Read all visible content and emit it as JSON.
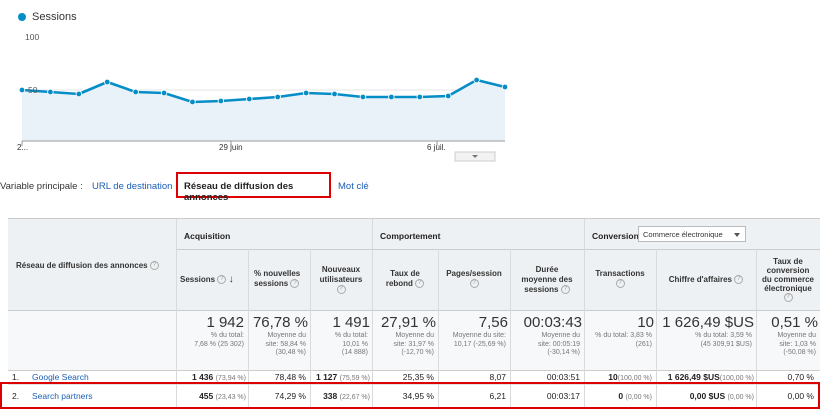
{
  "chart": {
    "legend": "Sessions",
    "color": "#058dc7",
    "fill": "#e8f2f8",
    "y_top_label": "100",
    "y_mid_label": "50",
    "x_labels": [
      "2...",
      "29 juin",
      "6 juil."
    ]
  },
  "chart_data": {
    "type": "area",
    "series": [
      {
        "name": "Sessions",
        "values": [
          50,
          48,
          46,
          58,
          48,
          47,
          38,
          39,
          41,
          43,
          47,
          46,
          43,
          43,
          43,
          44,
          60,
          53
        ]
      }
    ],
    "ylim": [
      0,
      100
    ],
    "y_ticks": [
      "50",
      "100"
    ],
    "x_tick_labels": [
      "2...",
      "29 juin",
      "6 juil."
    ],
    "grid": true
  },
  "dimension": {
    "label": "Variable principale :",
    "options": [
      {
        "label": "URL de destination"
      },
      {
        "label": "Réseau de diffusion des annonces"
      },
      {
        "label": "Mot clé"
      }
    ]
  },
  "table": {
    "first_col_header": "Réseau de diffusion des annonces",
    "groups": {
      "acquisition": "Acquisition",
      "comportement": "Comportement",
      "conversions": "Conversions"
    },
    "conversion_select": "Commerce électronique",
    "columns": [
      {
        "l1": "Sessions",
        "l2": ""
      },
      {
        "l1": "% nouvelles",
        "l2": "sessions"
      },
      {
        "l1": "Nouveaux",
        "l2": "utilisateurs"
      },
      {
        "l1": "Taux de",
        "l2": "rebond"
      },
      {
        "l1": "Pages/session",
        "l2": ""
      },
      {
        "l1": "Durée",
        "l2": "moyenne des",
        "l3": "sessions"
      },
      {
        "l1": "Transactions",
        "l2": ""
      },
      {
        "l1": "Chiffre d'affaires",
        "l2": ""
      },
      {
        "l1": "Taux de",
        "l2": "conversion",
        "l3": "du commerce",
        "l4": "électronique"
      }
    ],
    "summary": [
      {
        "v": "1 942",
        "s1": "% du total:",
        "s2": "7,68 % (25 302)"
      },
      {
        "v": "76,78 %",
        "s1": "Moyenne du",
        "s2": "site: 58,84 %",
        "s3": "(30,48 %)"
      },
      {
        "v": "1 491",
        "s1": "% du total:",
        "s2": "10,01 %",
        "s3": "(14 888)"
      },
      {
        "v": "27,91 %",
        "s1": "Moyenne du",
        "s2": "site: 31,97 %",
        "s3": "(-12,70 %)"
      },
      {
        "v": "7,56",
        "s1": "Moyenne du site:",
        "s2": "10,17 (-25,69 %)"
      },
      {
        "v": "00:03:43",
        "s1": "Moyenne du",
        "s2": "site: 00:05:19",
        "s3": "(-30,14 %)"
      },
      {
        "v": "10",
        "s1": "% du total: 3,83 %",
        "s2": "(261)"
      },
      {
        "v": "1 626,49 $US",
        "s1": "% du total: 3,59 %",
        "s2": "(45 309,91 $US)"
      },
      {
        "v": "0,51 %",
        "s1": "Moyenne du",
        "s2": "site: 1,03 %",
        "s3": "(-50,08 %)"
      }
    ],
    "rows": [
      {
        "idx": "1.",
        "name": "Google Search",
        "c": [
          {
            "v": "1 436",
            "p": "(73,94 %)"
          },
          {
            "v": "78,48 %"
          },
          {
            "v": "1 127",
            "p": "(75,59 %)"
          },
          {
            "v": "25,35 %"
          },
          {
            "v": "8,07"
          },
          {
            "v": "00:03:51"
          },
          {
            "v": "10",
            "p": "(100,00 %)"
          },
          {
            "v": "1 626,49 $US",
            "p": "(100,00 %)"
          },
          {
            "v": "0,70 %"
          }
        ]
      },
      {
        "idx": "2.",
        "name": "Search partners",
        "c": [
          {
            "v": "455",
            "p": "(23,43 %)"
          },
          {
            "v": "74,29 %"
          },
          {
            "v": "338",
            "p": "(22,67 %)"
          },
          {
            "v": "34,95 %"
          },
          {
            "v": "6,21"
          },
          {
            "v": "00:03:17"
          },
          {
            "v": "0",
            "p": "(0,00 %)"
          },
          {
            "v": "0,00 $US",
            "p": "(0,00 %)"
          },
          {
            "v": "0,00 %"
          }
        ]
      }
    ]
  }
}
